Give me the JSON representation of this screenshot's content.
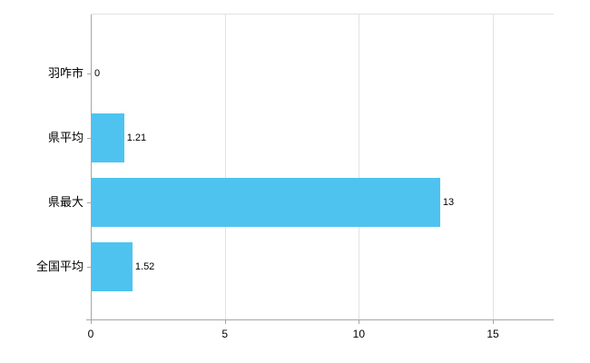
{
  "chart_data": {
    "type": "bar",
    "orientation": "horizontal",
    "title": "",
    "xlabel": "",
    "ylabel": "",
    "categories": [
      "羽咋市",
      "県平均",
      "県最大",
      "全国平均"
    ],
    "values": [
      0,
      1.21,
      13,
      1.52
    ],
    "value_labels": [
      "0",
      "1.21",
      "13",
      "1.52"
    ],
    "xlim": [
      0,
      15
    ],
    "xticks": [
      0,
      5,
      10,
      15
    ],
    "xtick_labels": [
      "0",
      "5",
      "10",
      "15"
    ],
    "grid": "vertical",
    "legend": "none",
    "colors": {
      "bar": "#4FC3F0",
      "grid": "#e2e2e2",
      "axis": "#a6a6a6",
      "text": "#000000",
      "background": "#ffffff"
    }
  }
}
